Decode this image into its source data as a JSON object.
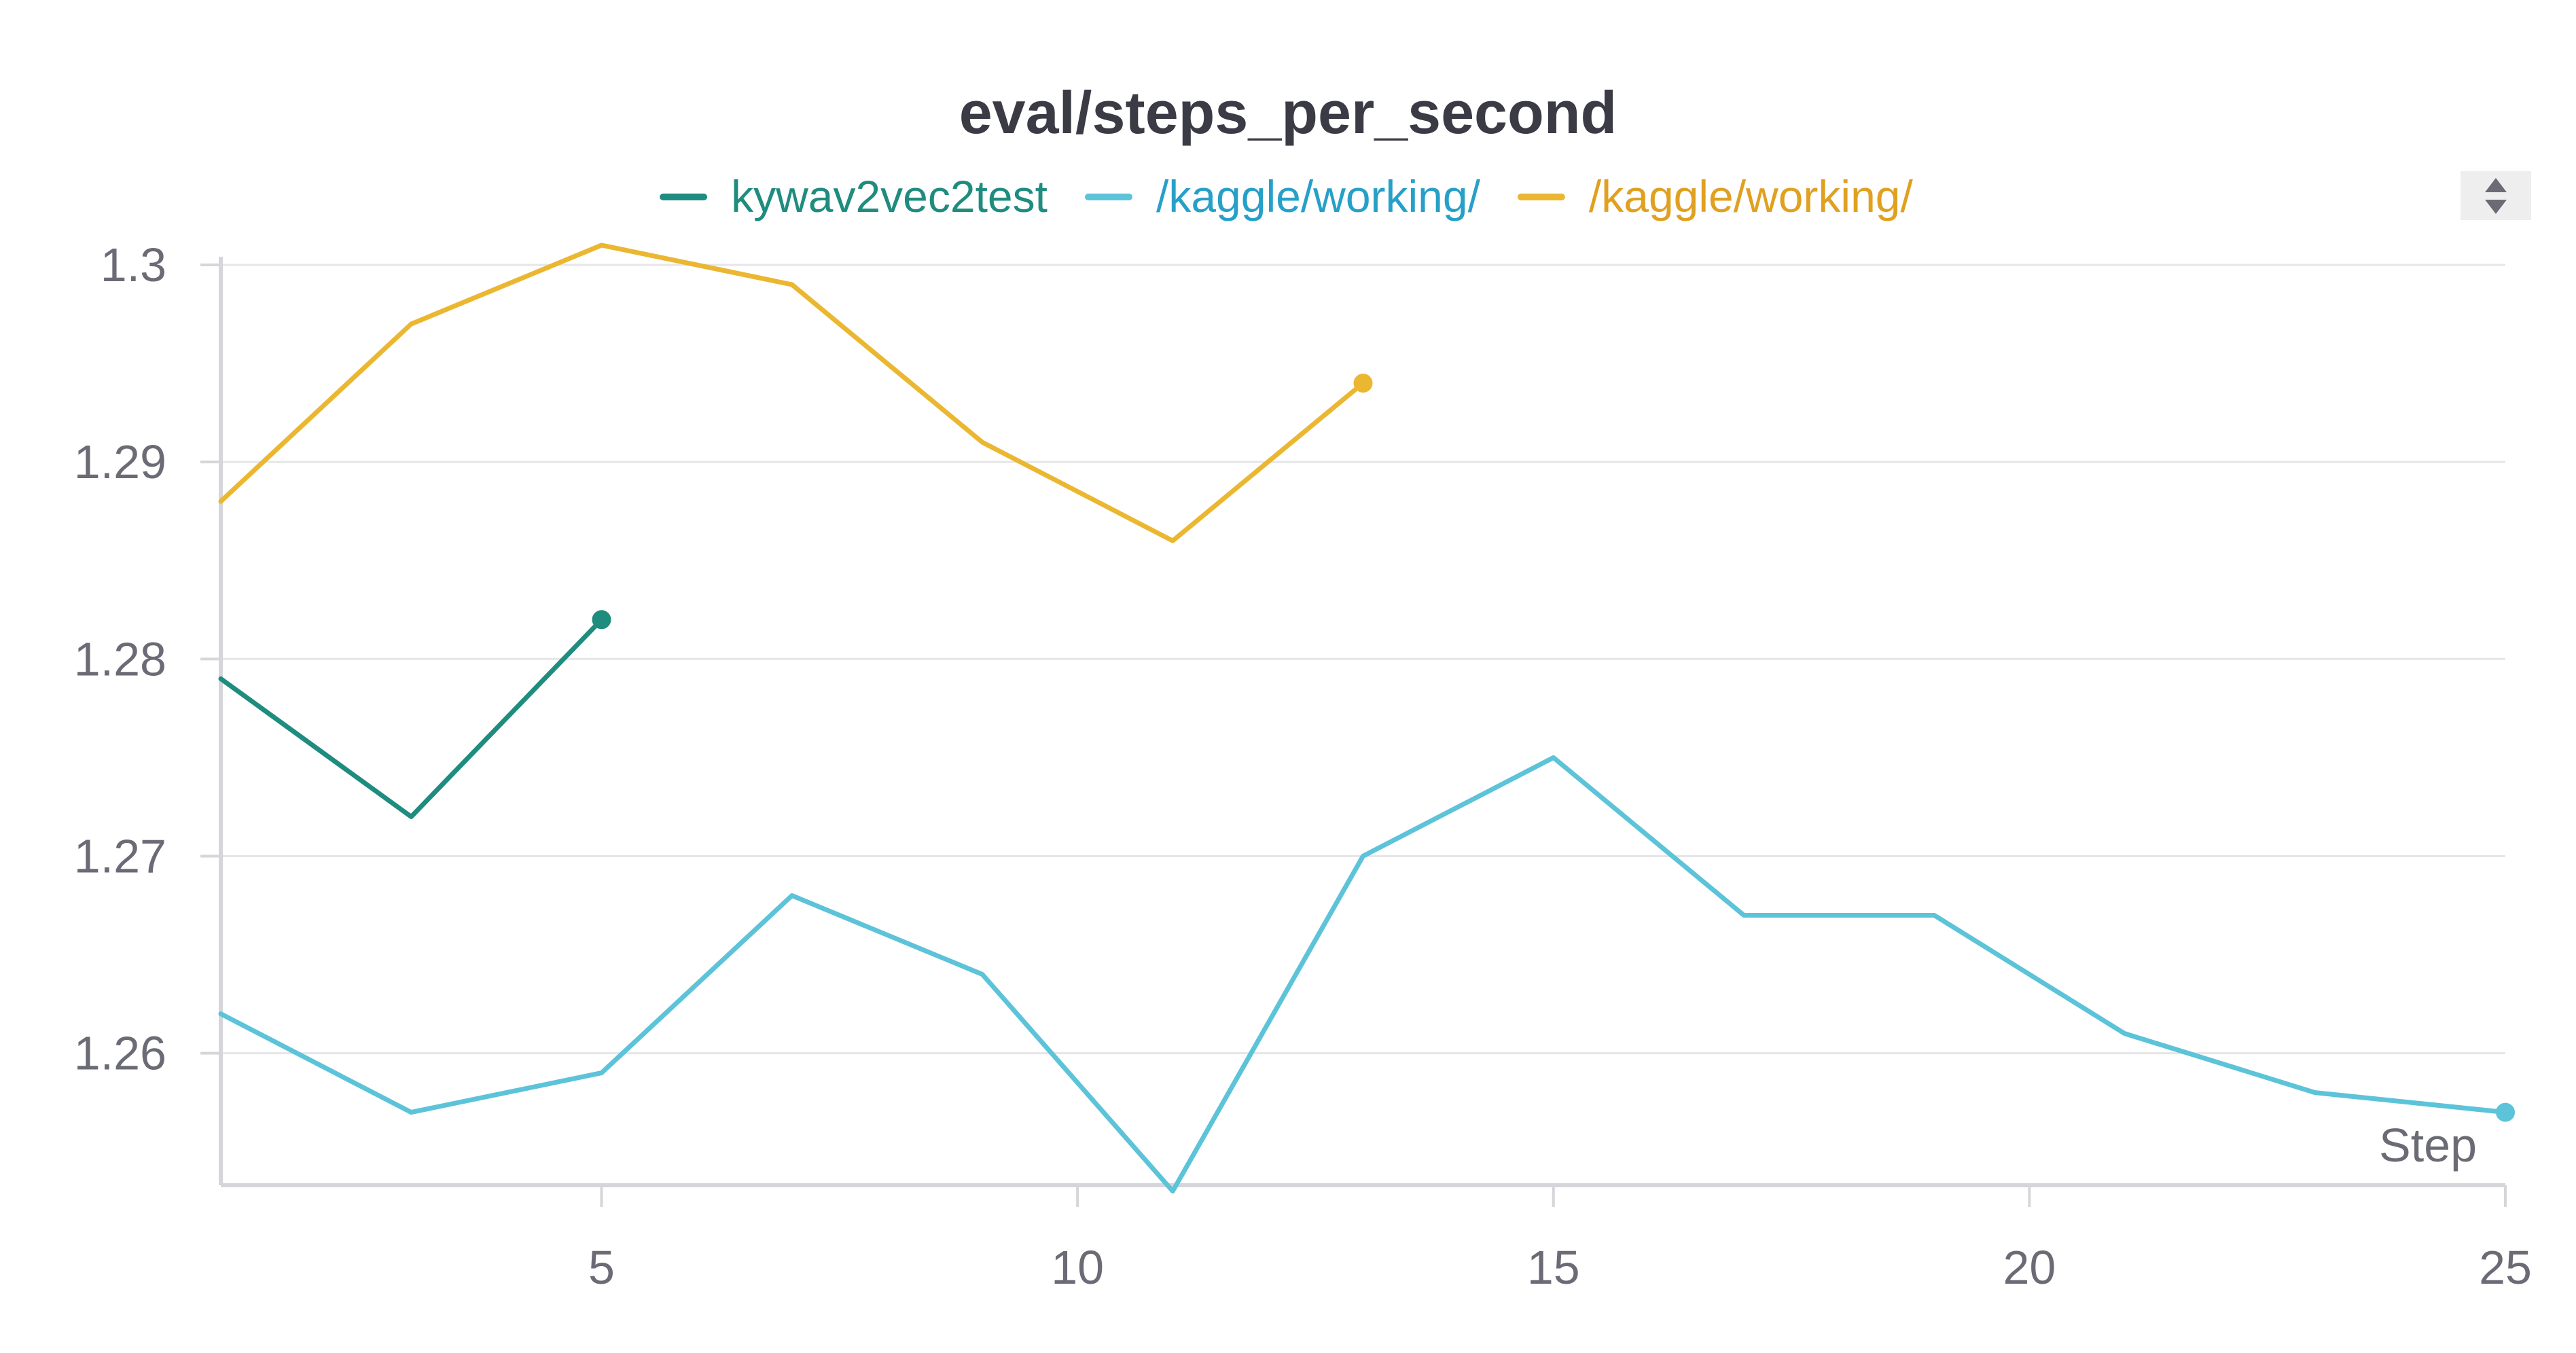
{
  "chart_data": {
    "type": "line",
    "title": "eval/steps_per_second",
    "xlabel": "Step",
    "ylabel": "",
    "xlim": [
      1,
      25
    ],
    "ylim": [
      1.2533,
      1.3
    ],
    "x_ticks": [
      5,
      10,
      15,
      20,
      25
    ],
    "x_tick_labels": [
      "5",
      "10",
      "15",
      "20",
      "25"
    ],
    "y_ticks": [
      1.26,
      1.27,
      1.28,
      1.29,
      1.3
    ],
    "y_tick_labels": [
      "1.26",
      "1.27",
      "1.28",
      "1.29",
      "1.3"
    ],
    "grid": true,
    "legend_position": "top-center",
    "series": [
      {
        "name": "kywav2vec2test",
        "color": "#1e8c7e",
        "legend_text_color": "#1e8c7e",
        "x": [
          1,
          3,
          5
        ],
        "y": [
          1.279,
          1.272,
          1.282
        ]
      },
      {
        "name": "/kaggle/working/",
        "color": "#5cc3d9",
        "legend_text_color": "#26a0c8",
        "x": [
          1,
          3,
          5,
          7,
          9,
          11,
          13,
          15,
          17,
          19,
          21,
          23,
          25
        ],
        "y": [
          1.262,
          1.257,
          1.259,
          1.268,
          1.264,
          1.253,
          1.27,
          1.275,
          1.267,
          1.267,
          1.261,
          1.258,
          1.257
        ]
      },
      {
        "name": "/kaggle/working/",
        "color": "#ebb731",
        "legend_text_color": "#e0a020",
        "x": [
          1,
          3,
          5,
          7,
          9,
          11,
          13
        ],
        "y": [
          1.288,
          1.297,
          1.301,
          1.299,
          1.291,
          1.286,
          1.294
        ]
      }
    ]
  },
  "legend_scroll_icon": "up-down-arrows-icon"
}
